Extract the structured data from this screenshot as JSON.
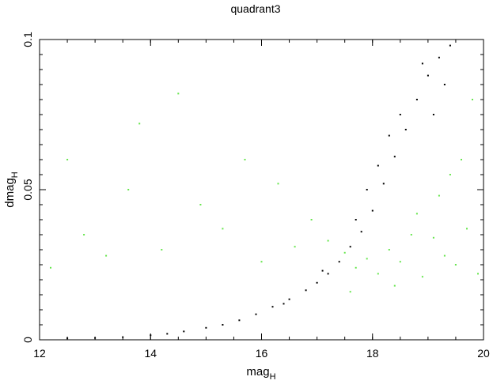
{
  "chart_data": {
    "type": "scatter",
    "title": "quadrant3",
    "xlabel": "mag",
    "xlabel_sub": "H",
    "ylabel": "dmag",
    "ylabel_sub": "H",
    "xlim": [
      12,
      20
    ],
    "ylim": [
      0,
      0.1
    ],
    "x_ticks": [
      12,
      14,
      16,
      18,
      20
    ],
    "x_tick_labels": [
      "12",
      "14",
      "16",
      "18",
      "20"
    ],
    "y_ticks": [
      0,
      0.05,
      0.1
    ],
    "y_tick_labels": [
      "0",
      "0.05",
      "0.1"
    ],
    "grid": false,
    "colors": {
      "series_black": "#000000",
      "series_green": "#66e64d",
      "axes": "#000000"
    },
    "series": [
      {
        "color": "#000000",
        "points": [
          [
            12.5,
            0.0005
          ],
          [
            13.0,
            0.0006
          ],
          [
            13.5,
            0.0009
          ],
          [
            14.0,
            0.0015
          ],
          [
            14.3,
            0.002
          ],
          [
            14.6,
            0.0028
          ],
          [
            15.0,
            0.004
          ],
          [
            15.3,
            0.005
          ],
          [
            15.6,
            0.0065
          ],
          [
            15.9,
            0.0085
          ],
          [
            16.2,
            0.011
          ],
          [
            16.5,
            0.0135
          ],
          [
            16.8,
            0.0165
          ],
          [
            17.0,
            0.019
          ],
          [
            17.2,
            0.022
          ],
          [
            17.4,
            0.026
          ],
          [
            17.6,
            0.031
          ],
          [
            17.8,
            0.036
          ],
          [
            18.0,
            0.043
          ],
          [
            18.2,
            0.052
          ],
          [
            18.4,
            0.061
          ],
          [
            18.6,
            0.07
          ],
          [
            18.8,
            0.08
          ],
          [
            19.0,
            0.088
          ],
          [
            19.2,
            0.094
          ],
          [
            19.4,
            0.098
          ],
          [
            16.4,
            0.012
          ],
          [
            17.1,
            0.023
          ],
          [
            17.7,
            0.04
          ],
          [
            18.1,
            0.058
          ],
          [
            18.5,
            0.075
          ],
          [
            18.9,
            0.092
          ],
          [
            19.1,
            0.075
          ],
          [
            19.3,
            0.085
          ],
          [
            17.9,
            0.05
          ],
          [
            18.3,
            0.068
          ]
        ]
      },
      {
        "color": "#66e64d",
        "points": [
          [
            12.2,
            0.024
          ],
          [
            12.5,
            0.06
          ],
          [
            12.8,
            0.035
          ],
          [
            13.2,
            0.028
          ],
          [
            13.6,
            0.05
          ],
          [
            13.8,
            0.072
          ],
          [
            14.2,
            0.03
          ],
          [
            14.5,
            0.082
          ],
          [
            14.9,
            0.045
          ],
          [
            15.3,
            0.037
          ],
          [
            15.7,
            0.06
          ],
          [
            16.0,
            0.026
          ],
          [
            16.3,
            0.052
          ],
          [
            16.6,
            0.031
          ],
          [
            16.9,
            0.04
          ],
          [
            17.2,
            0.033
          ],
          [
            17.5,
            0.029
          ],
          [
            17.7,
            0.024
          ],
          [
            17.9,
            0.027
          ],
          [
            18.1,
            0.022
          ],
          [
            18.3,
            0.03
          ],
          [
            18.5,
            0.026
          ],
          [
            18.7,
            0.035
          ],
          [
            18.9,
            0.021
          ],
          [
            19.1,
            0.034
          ],
          [
            19.3,
            0.028
          ],
          [
            19.5,
            0.025
          ],
          [
            19.7,
            0.037
          ],
          [
            19.9,
            0.022
          ],
          [
            19.6,
            0.06
          ],
          [
            19.2,
            0.048
          ],
          [
            18.8,
            0.042
          ],
          [
            19.8,
            0.08
          ],
          [
            19.4,
            0.055
          ],
          [
            18.4,
            0.018
          ],
          [
            17.6,
            0.016
          ]
        ]
      }
    ]
  }
}
